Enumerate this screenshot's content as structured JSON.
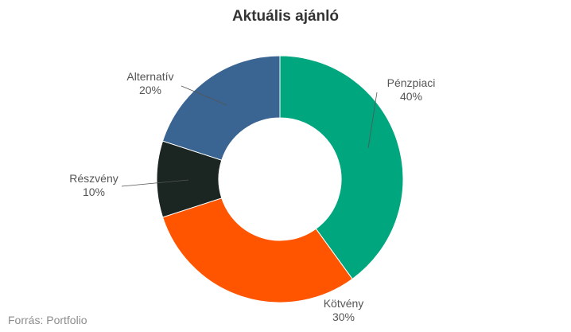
{
  "chart_data": {
    "type": "pie",
    "variant": "donut",
    "title": "Aktuális ajánló",
    "categories": [
      "Pénzpiaci",
      "Kötvény",
      "Részvény",
      "Alternatív"
    ],
    "values": [
      40,
      30,
      10,
      20
    ],
    "value_labels": [
      "40%",
      "30%",
      "10%",
      "20%"
    ],
    "colors": [
      "#00a67e",
      "#ff5500",
      "#1b2521",
      "#3a6491"
    ],
    "start_angle_deg": 0,
    "direction": "clockwise",
    "label_color": "#555555",
    "leader_line_color": "#555555",
    "legend": "none"
  },
  "source": "Forrás: Portfolio"
}
